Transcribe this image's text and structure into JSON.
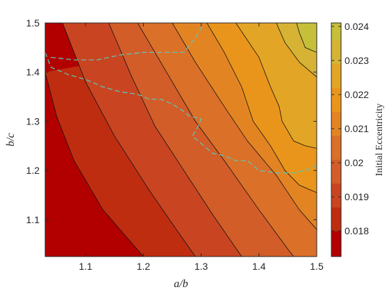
{
  "chart_data": {
    "type": "heatmap",
    "subtype": "filled-contour",
    "xlabel": "a/b",
    "ylabel": "b/c",
    "colorbar_label": "Initial Eccentricity",
    "xlim": [
      1.03,
      1.5
    ],
    "ylim": [
      1.025,
      1.5
    ],
    "x_ticks": [
      "1.1",
      "1.2",
      "1.3",
      "1.4",
      "1.5"
    ],
    "y_ticks": [
      "1.1",
      "1.2",
      "1.3",
      "1.4",
      "1.5"
    ],
    "colorbar_range": [
      0.01725,
      0.0241
    ],
    "colorbar_ticks": [
      "0.018",
      "0.019",
      "0.02",
      "0.021",
      "0.022",
      "0.023",
      "0.024"
    ],
    "contour_levels": [
      0.018,
      0.0187,
      0.0194,
      0.0201,
      0.0208,
      0.0215,
      0.0222,
      0.0229,
      0.0236
    ],
    "band_colors": [
      "#b20000",
      "#bf2d10",
      "#c94521",
      "#d25d29",
      "#db7029",
      "#e38423",
      "#e9951c",
      "#e3a525",
      "#d6b334",
      "#c6bf3a"
    ],
    "contour_lines": [
      {
        "level": 0.018,
        "points": [
          [
            1.03,
            1.4
          ],
          [
            1.05,
            1.31
          ],
          [
            1.08,
            1.22
          ],
          [
            1.13,
            1.12
          ],
          [
            1.2,
            1.025
          ]
        ]
      },
      {
        "level": 0.0187,
        "points": [
          [
            1.06,
            1.5
          ],
          [
            1.1,
            1.38
          ],
          [
            1.15,
            1.27
          ],
          [
            1.21,
            1.16
          ],
          [
            1.26,
            1.075
          ],
          [
            1.29,
            1.025
          ]
        ]
      },
      {
        "level": 0.0194,
        "points": [
          [
            1.14,
            1.5
          ],
          [
            1.18,
            1.39
          ],
          [
            1.22,
            1.29
          ],
          [
            1.27,
            1.2
          ],
          [
            1.32,
            1.11
          ],
          [
            1.37,
            1.025
          ]
        ]
      },
      {
        "level": 0.0201,
        "points": [
          [
            1.19,
            1.5
          ],
          [
            1.24,
            1.4
          ],
          [
            1.29,
            1.3
          ],
          [
            1.34,
            1.22
          ],
          [
            1.4,
            1.12
          ],
          [
            1.45,
            1.04
          ],
          [
            1.46,
            1.025
          ]
        ]
      },
      {
        "level": 0.0208,
        "points": [
          [
            1.25,
            1.5
          ],
          [
            1.29,
            1.42
          ],
          [
            1.34,
            1.33
          ],
          [
            1.38,
            1.26
          ],
          [
            1.43,
            1.19
          ],
          [
            1.47,
            1.12
          ],
          [
            1.5,
            1.08
          ]
        ]
      },
      {
        "level": 0.0215,
        "points": [
          [
            1.31,
            1.5
          ],
          [
            1.34,
            1.44
          ],
          [
            1.37,
            1.37
          ],
          [
            1.39,
            1.3
          ],
          [
            1.42,
            1.25
          ],
          [
            1.445,
            1.2
          ],
          [
            1.47,
            1.17
          ],
          [
            1.5,
            1.155
          ]
        ]
      },
      {
        "level": 0.0222,
        "points": [
          [
            1.36,
            1.5
          ],
          [
            1.4,
            1.43
          ],
          [
            1.42,
            1.37
          ],
          [
            1.435,
            1.33
          ],
          [
            1.44,
            1.3
          ],
          [
            1.46,
            1.26
          ],
          [
            1.48,
            1.25
          ],
          [
            1.5,
            1.245
          ]
        ]
      },
      {
        "level": 0.0229,
        "points": [
          [
            1.43,
            1.5
          ],
          [
            1.445,
            1.46
          ],
          [
            1.47,
            1.42
          ],
          [
            1.5,
            1.39
          ]
        ]
      },
      {
        "level": 0.0236,
        "points": [
          [
            1.465,
            1.5
          ],
          [
            1.47,
            1.48
          ],
          [
            1.48,
            1.45
          ],
          [
            1.5,
            1.44
          ]
        ]
      }
    ],
    "dashed_boundaries": [
      {
        "color": "#5fc4b6",
        "points": [
          [
            1.04,
            1.43
          ],
          [
            1.08,
            1.425
          ],
          [
            1.12,
            1.425
          ],
          [
            1.16,
            1.435
          ],
          [
            1.2,
            1.44
          ],
          [
            1.24,
            1.44
          ],
          [
            1.27,
            1.44
          ],
          [
            1.28,
            1.455
          ],
          [
            1.29,
            1.47
          ],
          [
            1.3,
            1.49
          ],
          [
            1.305,
            1.5
          ]
        ]
      },
      {
        "color": "#5fc4b6",
        "points": [
          [
            1.03,
            1.44
          ],
          [
            1.04,
            1.41
          ],
          [
            1.07,
            1.395
          ],
          [
            1.1,
            1.385
          ],
          [
            1.13,
            1.37
          ],
          [
            1.16,
            1.36
          ],
          [
            1.19,
            1.355
          ],
          [
            1.21,
            1.345
          ],
          [
            1.23,
            1.345
          ],
          [
            1.25,
            1.335
          ],
          [
            1.27,
            1.32
          ],
          [
            1.28,
            1.31
          ],
          [
            1.3,
            1.305
          ],
          [
            1.295,
            1.29
          ],
          [
            1.285,
            1.27
          ],
          [
            1.3,
            1.255
          ],
          [
            1.31,
            1.245
          ],
          [
            1.32,
            1.235
          ],
          [
            1.34,
            1.23
          ],
          [
            1.36,
            1.22
          ],
          [
            1.38,
            1.22
          ],
          [
            1.4,
            1.2
          ],
          [
            1.43,
            1.195
          ],
          [
            1.46,
            1.195
          ],
          [
            1.48,
            1.2
          ],
          [
            1.5,
            1.21
          ]
        ]
      }
    ]
  }
}
